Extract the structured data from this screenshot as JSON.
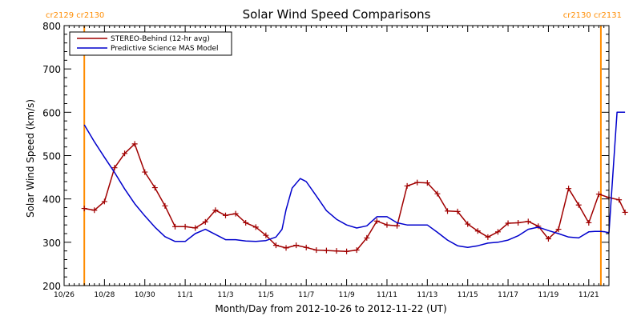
{
  "chart_data": {
    "type": "line",
    "title": "Solar Wind Speed Comparisons",
    "xlabel": "Month/Day from 2012-10-26 to 2012-11-22 (UT)",
    "ylabel": "Solar Wind Speed (km/s)",
    "ylim": [
      200,
      800
    ],
    "xlim": [
      0,
      27
    ],
    "y_ticks": [
      200,
      300,
      400,
      500,
      600,
      700,
      800
    ],
    "x_ticks": [
      {
        "x": 0,
        "label": "10/26"
      },
      {
        "x": 2,
        "label": "10/28"
      },
      {
        "x": 4,
        "label": "10/30"
      },
      {
        "x": 6,
        "label": "11/1"
      },
      {
        "x": 8,
        "label": "11/3"
      },
      {
        "x": 10,
        "label": "11/5"
      },
      {
        "x": 12,
        "label": "11/7"
      },
      {
        "x": 14,
        "label": "11/9"
      },
      {
        "x": 16,
        "label": "11/11"
      },
      {
        "x": 18,
        "label": "11/13"
      },
      {
        "x": 20,
        "label": "11/15"
      },
      {
        "x": 22,
        "label": "11/17"
      },
      {
        "x": 24,
        "label": "11/19"
      },
      {
        "x": 26,
        "label": "11/21"
      }
    ],
    "rotation_boundaries": [
      {
        "x": 1.0,
        "left_label": "cr2129",
        "right_label": "cr2130",
        "label_align": "left"
      },
      {
        "x": 26.6,
        "left_label": "cr2130",
        "right_label": "cr2131",
        "label_align": "right"
      }
    ],
    "legend_position": "top-left",
    "colors": {
      "stereo": "#a00000",
      "model": "#0000cc",
      "boundary": "#ff8c00"
    },
    "series": [
      {
        "name": "STEREO-Behind (12-hr avg)",
        "color": "#a00000",
        "markers": true,
        "x": [
          1.0,
          1.5,
          2.0,
          2.5,
          3.0,
          3.5,
          4.0,
          4.5,
          5.0,
          5.5,
          6.0,
          6.5,
          7.0,
          7.5,
          8.0,
          8.5,
          9.0,
          9.5,
          10.0,
          10.5,
          11.0,
          11.5,
          12.0,
          12.5,
          13.0,
          13.5,
          14.0,
          14.5,
          15.0,
          15.5,
          16.0,
          16.5,
          17.0,
          17.5,
          18.0,
          18.5,
          19.0,
          19.5,
          20.0,
          20.5,
          21.0,
          21.5,
          22.0,
          22.5,
          23.0,
          23.5,
          24.0,
          24.5,
          25.0,
          25.5,
          26.0,
          26.5,
          27.0,
          27.5,
          27.8
        ],
        "values": [
          378,
          374,
          394,
          472,
          505,
          527,
          462,
          426,
          384,
          336,
          336,
          333,
          347,
          374,
          362,
          366,
          345,
          335,
          316,
          293,
          287,
          293,
          288,
          282,
          281,
          280,
          279,
          282,
          310,
          349,
          340,
          338,
          430,
          438,
          437,
          412,
          372,
          371,
          342,
          326,
          312,
          324,
          344,
          345,
          348,
          337,
          308,
          330,
          424,
          386,
          345,
          411,
          403,
          398,
          369
        ]
      },
      {
        "name": "Predictive Science MAS Model",
        "color": "#0000cc",
        "markers": false,
        "x": [
          1.0,
          1.5,
          2.0,
          2.5,
          3.0,
          3.5,
          4.0,
          4.5,
          5.0,
          5.5,
          6.0,
          6.5,
          7.0,
          7.5,
          8.0,
          8.5,
          9.0,
          9.5,
          10.0,
          10.5,
          10.8,
          11.0,
          11.3,
          11.7,
          12.0,
          12.5,
          13.0,
          13.5,
          14.0,
          14.5,
          15.0,
          15.5,
          16.0,
          16.5,
          17.0,
          17.5,
          18.0,
          18.5,
          19.0,
          19.5,
          20.0,
          20.5,
          21.0,
          21.5,
          22.0,
          22.5,
          23.0,
          23.5,
          24.0,
          24.5,
          25.0,
          25.5,
          26.0,
          26.3,
          26.6,
          26.8,
          27.0,
          27.4,
          27.8
        ],
        "values": [
          571,
          532,
          496,
          461,
          423,
          389,
          361,
          335,
          313,
          302,
          302,
          320,
          330,
          318,
          306,
          306,
          303,
          302,
          304,
          312,
          330,
          375,
          425,
          447,
          440,
          407,
          373,
          353,
          340,
          333,
          338,
          359,
          359,
          345,
          340,
          340,
          340,
          323,
          305,
          292,
          288,
          292,
          298,
          300,
          305,
          315,
          330,
          335,
          327,
          320,
          312,
          310,
          324,
          325,
          325,
          324,
          322,
          600,
          600
        ]
      }
    ]
  }
}
